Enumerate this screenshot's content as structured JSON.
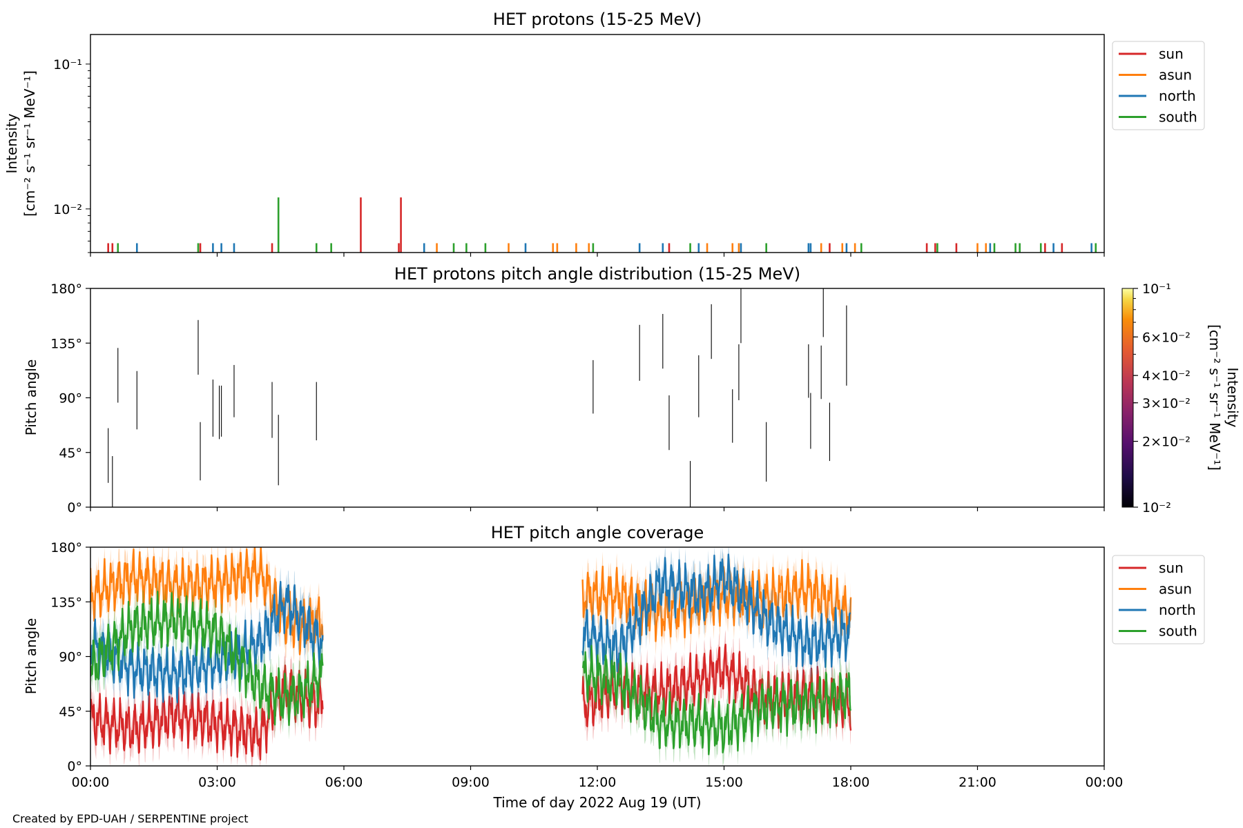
{
  "figure": {
    "footer": "Created by EPD-UAH / SERPENTINE project",
    "xlabel": "Time of day 2022 Aug 19 (UT)",
    "xticks": [
      "00:00",
      "03:00",
      "06:00",
      "09:00",
      "12:00",
      "15:00",
      "18:00",
      "21:00",
      "00:00"
    ]
  },
  "colors": {
    "sun": "#d62728",
    "asun": "#ff7f0e",
    "north": "#1f77b4",
    "south": "#2ca02c"
  },
  "chart_data": [
    {
      "type": "bar",
      "title": "HET protons (15-25 MeV)",
      "ylabel": "Intensity",
      "yunits": "[cm⁻² s⁻¹ sr⁻¹ MeV⁻¹]",
      "yscale": "log",
      "ylim": [
        0.005,
        0.16
      ],
      "xlim_hours": [
        0,
        24
      ],
      "yticks": [
        {
          "value": 0.1,
          "label": "10⁻¹"
        },
        {
          "value": 0.01,
          "label": "10⁻²"
        }
      ],
      "legend": {
        "placement": "upper-right, outside",
        "entries": [
          "sun",
          "asun",
          "north",
          "south"
        ]
      },
      "series": [
        {
          "name": "sun",
          "spikes": [
            [
              0.42,
              0.0058
            ],
            [
              0.52,
              0.0058
            ],
            [
              2.6,
              0.0058
            ],
            [
              4.3,
              0.0058
            ],
            [
              6.4,
              0.012
            ],
            [
              7.3,
              0.0058
            ],
            [
              7.35,
              0.012
            ],
            [
              13.7,
              0.0058
            ],
            [
              17.5,
              0.0058
            ],
            [
              19.8,
              0.0058
            ],
            [
              20.0,
              0.0058
            ],
            [
              20.5,
              0.0058
            ],
            [
              22.6,
              0.0058
            ],
            [
              23.0,
              0.0058
            ]
          ]
        },
        {
          "name": "asun",
          "spikes": [
            [
              8.2,
              0.0058
            ],
            [
              9.9,
              0.0058
            ],
            [
              10.95,
              0.0058
            ],
            [
              11.05,
              0.0058
            ],
            [
              11.5,
              0.0058
            ],
            [
              11.8,
              0.0058
            ],
            [
              14.6,
              0.0058
            ],
            [
              15.2,
              0.0058
            ],
            [
              15.35,
              0.0058
            ],
            [
              17.3,
              0.0058
            ],
            [
              17.8,
              0.0058
            ],
            [
              18.1,
              0.0058
            ],
            [
              21.0,
              0.0058
            ],
            [
              21.2,
              0.0058
            ]
          ]
        },
        {
          "name": "north",
          "spikes": [
            [
              1.1,
              0.0058
            ],
            [
              2.9,
              0.0058
            ],
            [
              3.1,
              0.0058
            ],
            [
              3.4,
              0.0058
            ],
            [
              7.9,
              0.0058
            ],
            [
              10.3,
              0.0058
            ],
            [
              13.0,
              0.0058
            ],
            [
              13.55,
              0.0058
            ],
            [
              14.4,
              0.0058
            ],
            [
              15.4,
              0.0058
            ],
            [
              17.0,
              0.0058
            ],
            [
              17.05,
              0.0058
            ],
            [
              17.9,
              0.0058
            ],
            [
              21.3,
              0.0058
            ],
            [
              22.8,
              0.0058
            ],
            [
              23.7,
              0.0058
            ]
          ]
        },
        {
          "name": "south",
          "spikes": [
            [
              0.65,
              0.0058
            ],
            [
              2.55,
              0.0058
            ],
            [
              4.45,
              0.012
            ],
            [
              5.35,
              0.0058
            ],
            [
              5.7,
              0.0058
            ],
            [
              8.6,
              0.0058
            ],
            [
              8.9,
              0.0058
            ],
            [
              9.35,
              0.0058
            ],
            [
              11.9,
              0.0058
            ],
            [
              14.2,
              0.0058
            ],
            [
              16.0,
              0.0058
            ],
            [
              18.25,
              0.0058
            ],
            [
              20.05,
              0.0058
            ],
            [
              21.4,
              0.0058
            ],
            [
              21.9,
              0.0058
            ],
            [
              22.0,
              0.0058
            ],
            [
              22.5,
              0.0058
            ],
            [
              23.8,
              0.0058
            ]
          ]
        }
      ]
    },
    {
      "type": "heatmap",
      "title": "HET protons pitch angle distribution (15-25 MeV)",
      "ylabel": "Pitch angle",
      "ylim": [
        0,
        180
      ],
      "yticks": [
        "0°",
        "45°",
        "90°",
        "135°",
        "180°"
      ],
      "xlim_hours": [
        0,
        24
      ],
      "colorbar": {
        "label": "Intensity",
        "units": "[cm⁻² s⁻¹ sr⁻¹ MeV⁻¹]",
        "scale": "log",
        "range": [
          0.01,
          0.1
        ],
        "colormap": "inferno",
        "ticks": [
          {
            "value": 0.1,
            "label": "10⁻¹"
          },
          {
            "value": 0.06,
            "label": "6×10⁻²"
          },
          {
            "value": 0.04,
            "label": "4×10⁻²"
          },
          {
            "value": 0.03,
            "label": "3×10⁻²"
          },
          {
            "value": 0.02,
            "label": "2×10⁻²"
          },
          {
            "value": 0.01,
            "label": "10⁻²"
          }
        ]
      },
      "segments": [
        [
          0.42,
          20,
          65
        ],
        [
          0.52,
          0,
          42
        ],
        [
          0.65,
          86,
          131
        ],
        [
          1.1,
          64,
          112
        ],
        [
          2.55,
          109,
          154
        ],
        [
          2.6,
          22,
          70
        ],
        [
          2.9,
          58,
          105
        ],
        [
          3.05,
          56,
          100
        ],
        [
          3.1,
          58,
          100
        ],
        [
          3.4,
          74,
          117
        ],
        [
          4.3,
          57,
          103
        ],
        [
          4.45,
          18,
          76
        ],
        [
          5.35,
          55,
          103
        ],
        [
          11.9,
          77,
          121
        ],
        [
          13.0,
          104,
          150
        ],
        [
          13.55,
          114,
          159
        ],
        [
          13.7,
          47,
          92
        ],
        [
          14.2,
          0,
          38
        ],
        [
          14.4,
          74,
          125
        ],
        [
          14.7,
          122,
          167
        ],
        [
          15.2,
          53,
          97
        ],
        [
          15.35,
          88,
          134
        ],
        [
          15.4,
          135,
          180
        ],
        [
          16.0,
          21,
          70
        ],
        [
          17.0,
          90,
          134
        ],
        [
          17.05,
          48,
          94
        ],
        [
          17.3,
          89,
          133
        ],
        [
          17.35,
          140,
          180
        ],
        [
          17.5,
          38,
          86
        ],
        [
          17.9,
          100,
          166
        ]
      ]
    },
    {
      "type": "area",
      "title": "HET pitch angle coverage",
      "ylabel": "Pitch angle",
      "ylim": [
        0,
        180
      ],
      "yticks": [
        "0°",
        "45°",
        "90°",
        "135°",
        "180°"
      ],
      "xlim_hours": [
        0,
        24
      ],
      "legend": {
        "placement": "upper-right, outside",
        "entries": [
          "sun",
          "asun",
          "north",
          "south"
        ]
      },
      "data_intervals_hours": [
        [
          0.0,
          5.5
        ],
        [
          11.65,
          18.0
        ]
      ],
      "series": [
        {
          "name": "sun",
          "mean_deg": [
            [
              0.0,
              38
            ],
            [
              1.0,
              30
            ],
            [
              2.0,
              42
            ],
            [
              3.0,
              35
            ],
            [
              4.0,
              25
            ],
            [
              4.6,
              65
            ],
            [
              5.0,
              55
            ],
            [
              5.5,
              50
            ],
            [
              11.65,
              48
            ],
            [
              12.5,
              65
            ],
            [
              13.5,
              60
            ],
            [
              14.5,
              72
            ],
            [
              15.0,
              80
            ],
            [
              16.0,
              55
            ],
            [
              17.0,
              60
            ],
            [
              18.0,
              50
            ]
          ],
          "spread_deg": 12
        },
        {
          "name": "asun",
          "mean_deg": [
            [
              0.0,
              140
            ],
            [
              1.0,
              155
            ],
            [
              2.0,
              148
            ],
            [
              3.0,
              150
            ],
            [
              4.0,
              160
            ],
            [
              4.6,
              120
            ],
            [
              5.0,
              115
            ],
            [
              5.5,
              120
            ],
            [
              11.65,
              140
            ],
            [
              12.5,
              140
            ],
            [
              13.5,
              125
            ],
            [
              14.5,
              135
            ],
            [
              15.0,
              140
            ],
            [
              16.0,
              138
            ],
            [
              17.0,
              145
            ],
            [
              18.0,
              125
            ]
          ],
          "spread_deg": 12
        },
        {
          "name": "north",
          "mean_deg": [
            [
              0.0,
              100
            ],
            [
              1.0,
              80
            ],
            [
              2.0,
              75
            ],
            [
              3.0,
              85
            ],
            [
              4.0,
              100
            ],
            [
              4.6,
              135
            ],
            [
              5.0,
              120
            ],
            [
              5.5,
              100
            ],
            [
              11.65,
              110
            ],
            [
              12.5,
              95
            ],
            [
              13.5,
              150
            ],
            [
              14.5,
              140
            ],
            [
              15.0,
              155
            ],
            [
              16.0,
              120
            ],
            [
              17.0,
              100
            ],
            [
              18.0,
              110
            ]
          ],
          "spread_deg": 12
        },
        {
          "name": "south",
          "mean_deg": [
            [
              0.0,
              80
            ],
            [
              1.0,
              115
            ],
            [
              2.0,
              120
            ],
            [
              3.0,
              110
            ],
            [
              4.0,
              65
            ],
            [
              4.6,
              55
            ],
            [
              5.0,
              60
            ],
            [
              5.5,
              75
            ],
            [
              11.65,
              75
            ],
            [
              12.5,
              70
            ],
            [
              13.5,
              35
            ],
            [
              14.5,
              35
            ],
            [
              15.0,
              30
            ],
            [
              16.0,
              50
            ],
            [
              17.0,
              50
            ],
            [
              18.0,
              60
            ]
          ],
          "spread_deg": 12
        }
      ]
    }
  ]
}
